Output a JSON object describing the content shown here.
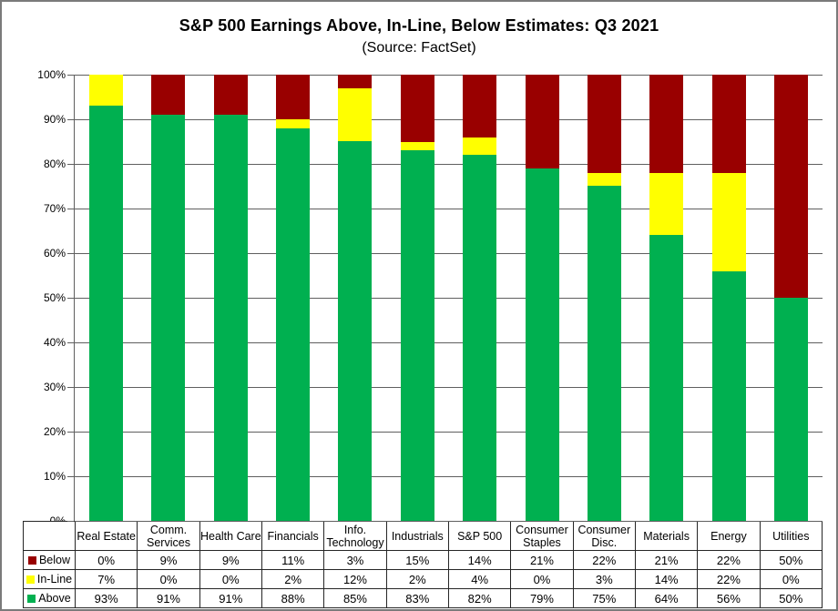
{
  "title": "S&P 500 Earnings Above, In-Line, Below Estimates: Q3 2021",
  "subtitle": "(Source: FactSet)",
  "colors": {
    "above": "#00B050",
    "inline": "#FFFF00",
    "below": "#990000",
    "gridline": "#5F5F5F",
    "table_border": "#262626"
  },
  "y_axis": {
    "ticks": [
      "100%",
      "90%",
      "80%",
      "70%",
      "60%",
      "50%",
      "40%",
      "30%",
      "20%",
      "10%",
      "0%"
    ]
  },
  "chart_data": {
    "type": "bar",
    "stacked": true,
    "stacking": "percent",
    "title": "S&P 500 Earnings Above, In-Line, Below Estimates: Q3 2021",
    "subtitle": "(Source: FactSet)",
    "categories": [
      "Real Estate",
      "Comm. Services",
      "Health Care",
      "Financials",
      "Info. Technology",
      "Industrials",
      "S&P 500",
      "Consumer Staples",
      "Consumer Disc.",
      "Materials",
      "Energy",
      "Utilities"
    ],
    "series": [
      {
        "name": "Below",
        "color": "#990000",
        "values": [
          0,
          9,
          9,
          11,
          3,
          15,
          14,
          21,
          22,
          21,
          22,
          50
        ]
      },
      {
        "name": "In-Line",
        "color": "#FFFF00",
        "values": [
          7,
          0,
          0,
          2,
          12,
          2,
          4,
          0,
          3,
          14,
          22,
          0
        ]
      },
      {
        "name": "Above",
        "color": "#00B050",
        "values": [
          93,
          91,
          91,
          88,
          85,
          83,
          82,
          79,
          75,
          64,
          56,
          50
        ]
      }
    ],
    "ylim": [
      0,
      100
    ],
    "y_tick_step": 10,
    "grid": "horizontal",
    "legend_position": "table-left-column"
  },
  "table": {
    "header_lines": [
      [
        "Real Estate"
      ],
      [
        "Comm.",
        "Services"
      ],
      [
        "Health Care"
      ],
      [
        "Financials"
      ],
      [
        "Info.",
        "Technology"
      ],
      [
        "Industrials"
      ],
      [
        "S&P 500"
      ],
      [
        "Consumer",
        "Staples"
      ],
      [
        "Consumer",
        "Disc."
      ],
      [
        "Materials"
      ],
      [
        "Energy"
      ],
      [
        "Utilities"
      ]
    ],
    "rows": [
      {
        "label": "Below",
        "color": "#990000",
        "values": [
          "0%",
          "9%",
          "9%",
          "11%",
          "3%",
          "15%",
          "14%",
          "21%",
          "22%",
          "21%",
          "22%",
          "50%"
        ]
      },
      {
        "label": "In-Line",
        "color": "#FFFF00",
        "values": [
          "7%",
          "0%",
          "0%",
          "2%",
          "12%",
          "2%",
          "4%",
          "0%",
          "3%",
          "14%",
          "22%",
          "0%"
        ]
      },
      {
        "label": "Above",
        "color": "#00B050",
        "values": [
          "93%",
          "91%",
          "91%",
          "88%",
          "85%",
          "83%",
          "82%",
          "79%",
          "75%",
          "64%",
          "56%",
          "50%"
        ]
      }
    ]
  }
}
